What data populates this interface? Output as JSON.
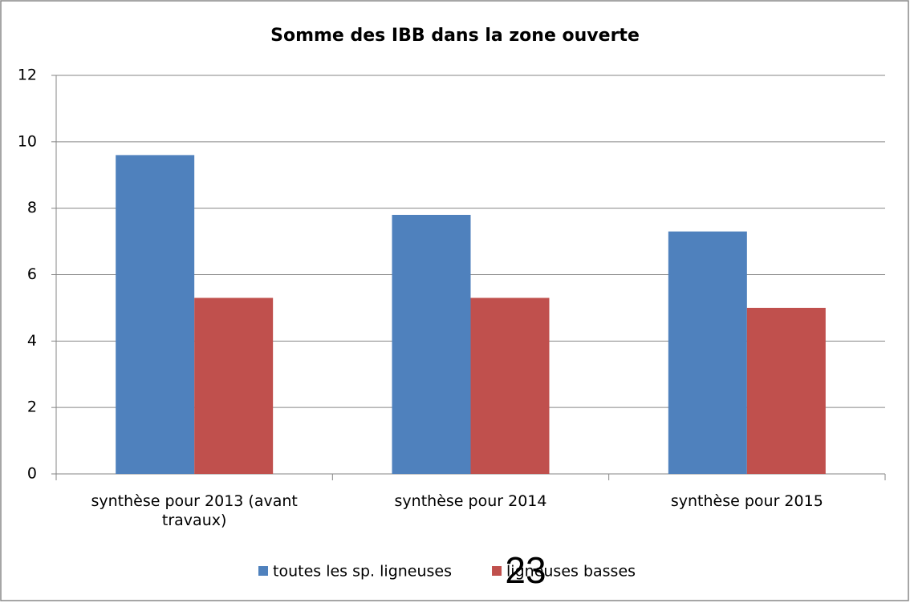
{
  "chart_data": {
    "type": "bar",
    "title": "Somme des IBB dans la zone ouverte",
    "categories": [
      "synthèse pour 2013 (avant travaux)",
      "synthèse pour 2014",
      "synthèse pour 2015"
    ],
    "series": [
      {
        "name": "toutes les sp. ligneuses",
        "color": "#4f81bd",
        "values": [
          9.6,
          7.8,
          7.3
        ]
      },
      {
        "name": "ligneuses basses",
        "color": "#c0504d",
        "values": [
          5.3,
          5.3,
          5.0
        ]
      }
    ],
    "ylim": [
      0,
      12
    ],
    "yticks": [
      0,
      2,
      4,
      6,
      8,
      10,
      12
    ],
    "grid": true,
    "legend": "bottom",
    "annotations": [
      "23"
    ]
  }
}
